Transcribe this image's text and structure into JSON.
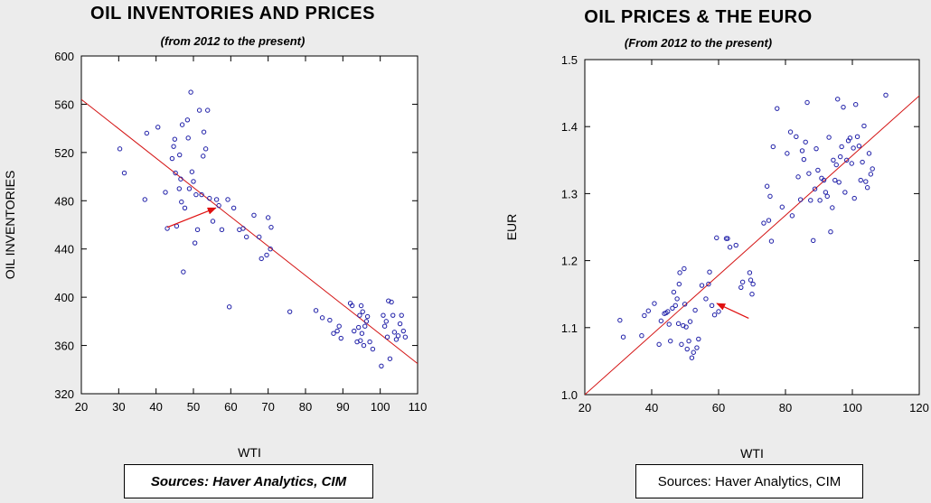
{
  "chart_data": [
    {
      "type": "scatter",
      "title": "OIL INVENTORIES AND PRICES",
      "subtitle": "(from 2012 to the present)",
      "xlabel": "WTI",
      "ylabel": "OIL INVENTORIES",
      "xlim": [
        20,
        110
      ],
      "ylim": [
        320,
        600
      ],
      "xticks": [
        20,
        30,
        40,
        50,
        60,
        70,
        80,
        90,
        100,
        110
      ],
      "yticks": [
        320,
        360,
        400,
        440,
        480,
        520,
        560,
        600
      ],
      "fit_line": [
        [
          20,
          564
        ],
        [
          110,
          345
        ]
      ],
      "arrow": {
        "from": [
          43,
          458
        ],
        "to": [
          56,
          474
        ]
      },
      "points": [
        [
          30.3,
          523
        ],
        [
          31.5,
          503
        ],
        [
          37,
          481
        ],
        [
          37.5,
          536
        ],
        [
          40.5,
          541
        ],
        [
          42.5,
          487
        ],
        [
          43,
          457
        ],
        [
          44.3,
          515
        ],
        [
          44.7,
          525
        ],
        [
          45,
          531
        ],
        [
          45.2,
          503
        ],
        [
          45.5,
          459
        ],
        [
          46.2,
          490
        ],
        [
          46.3,
          518
        ],
        [
          46.6,
          498
        ],
        [
          46.8,
          479
        ],
        [
          47,
          543
        ],
        [
          47.3,
          421
        ],
        [
          47.7,
          474
        ],
        [
          48.4,
          547
        ],
        [
          48.6,
          532
        ],
        [
          48.9,
          490
        ],
        [
          49.3,
          570
        ],
        [
          49.6,
          504
        ],
        [
          50,
          496
        ],
        [
          50.4,
          445
        ],
        [
          50.7,
          485
        ],
        [
          51.1,
          456
        ],
        [
          51.6,
          555
        ],
        [
          52.2,
          485
        ],
        [
          52.6,
          517
        ],
        [
          52.8,
          537
        ],
        [
          53.3,
          523
        ],
        [
          53.8,
          555
        ],
        [
          54.3,
          482
        ],
        [
          55.2,
          463
        ],
        [
          56.2,
          481
        ],
        [
          56.8,
          476
        ],
        [
          57.6,
          456
        ],
        [
          59.2,
          481
        ],
        [
          59.6,
          392
        ],
        [
          60.8,
          474
        ],
        [
          62.3,
          456
        ],
        [
          63.3,
          457
        ],
        [
          64.2,
          450
        ],
        [
          66.2,
          468
        ],
        [
          67.6,
          450
        ],
        [
          68.2,
          432
        ],
        [
          69.6,
          435
        ],
        [
          70,
          466
        ],
        [
          70.6,
          440
        ],
        [
          70.8,
          458
        ],
        [
          75.8,
          388
        ],
        [
          82.8,
          389
        ],
        [
          84.5,
          383
        ],
        [
          86.5,
          381
        ],
        [
          87.5,
          370
        ],
        [
          88.5,
          372
        ],
        [
          89,
          376
        ],
        [
          89.5,
          366
        ],
        [
          92,
          395
        ],
        [
          92.5,
          393
        ],
        [
          93,
          372
        ],
        [
          93.8,
          363
        ],
        [
          94.2,
          375
        ],
        [
          94.5,
          385
        ],
        [
          94.7,
          364
        ],
        [
          94.9,
          393
        ],
        [
          95.1,
          370
        ],
        [
          95.3,
          388
        ],
        [
          95.6,
          360
        ],
        [
          95.9,
          376
        ],
        [
          96.3,
          380
        ],
        [
          96.6,
          384
        ],
        [
          97.2,
          363
        ],
        [
          98,
          357
        ],
        [
          100.3,
          343
        ],
        [
          100.8,
          385
        ],
        [
          101.2,
          376
        ],
        [
          101.6,
          380
        ],
        [
          101.9,
          367
        ],
        [
          102.2,
          397
        ],
        [
          102.6,
          349
        ],
        [
          103,
          396
        ],
        [
          103.4,
          385
        ],
        [
          103.8,
          371
        ],
        [
          104.3,
          365
        ],
        [
          104.8,
          368
        ],
        [
          105.3,
          378
        ],
        [
          105.7,
          385
        ],
        [
          106.2,
          372
        ],
        [
          106.7,
          367
        ]
      ]
    },
    {
      "type": "scatter",
      "title": "OIL PRICES & THE EURO",
      "subtitle": "(From 2012 to the present)",
      "xlabel": "WTI",
      "ylabel": "EUR",
      "xlim": [
        20,
        120
      ],
      "ylim": [
        1.0,
        1.5
      ],
      "xticks": [
        20,
        40,
        60,
        80,
        100,
        120
      ],
      "yticks": [
        1.0,
        1.1,
        1.2,
        1.3,
        1.4,
        1.5
      ],
      "ytick_labels": [
        "1.0",
        "1.1",
        "1.2",
        "1.3",
        "1.4",
        "1.5"
      ],
      "fit_line": [
        [
          20,
          1.0
        ],
        [
          120,
          1.446
        ]
      ],
      "arrow": {
        "from": [
          69,
          1.114
        ],
        "to": [
          59.5,
          1.136
        ]
      },
      "points": [
        [
          30.5,
          1.111
        ],
        [
          31.5,
          1.086
        ],
        [
          37,
          1.088
        ],
        [
          37.8,
          1.118
        ],
        [
          39,
          1.125
        ],
        [
          40.8,
          1.136
        ],
        [
          42.2,
          1.075
        ],
        [
          42.8,
          1.11
        ],
        [
          43.8,
          1.121
        ],
        [
          44.3,
          1.122
        ],
        [
          44.8,
          1.124
        ],
        [
          45.2,
          1.105
        ],
        [
          45.6,
          1.08
        ],
        [
          46.2,
          1.129
        ],
        [
          46.6,
          1.153
        ],
        [
          47.1,
          1.133
        ],
        [
          47.6,
          1.143
        ],
        [
          48,
          1.106
        ],
        [
          48.2,
          1.165
        ],
        [
          48.4,
          1.182
        ],
        [
          48.9,
          1.075
        ],
        [
          49.4,
          1.103
        ],
        [
          49.7,
          1.188
        ],
        [
          49.9,
          1.135
        ],
        [
          50.3,
          1.101
        ],
        [
          50.6,
          1.068
        ],
        [
          51.1,
          1.08
        ],
        [
          51.5,
          1.109
        ],
        [
          52,
          1.055
        ],
        [
          52.5,
          1.063
        ],
        [
          53,
          1.126
        ],
        [
          53.5,
          1.07
        ],
        [
          54,
          1.083
        ],
        [
          55,
          1.163
        ],
        [
          56.2,
          1.143
        ],
        [
          57,
          1.165
        ],
        [
          57.3,
          1.183
        ],
        [
          58,
          1.133
        ],
        [
          58.8,
          1.119
        ],
        [
          59.4,
          1.234
        ],
        [
          60,
          1.124
        ],
        [
          62.3,
          1.233
        ],
        [
          62.7,
          1.233
        ],
        [
          63.4,
          1.22
        ],
        [
          65.2,
          1.223
        ],
        [
          66.7,
          1.16
        ],
        [
          67.2,
          1.168
        ],
        [
          69.3,
          1.182
        ],
        [
          69.6,
          1.171
        ],
        [
          70,
          1.15
        ],
        [
          70.3,
          1.165
        ],
        [
          73.5,
          1.256
        ],
        [
          74.5,
          1.311
        ],
        [
          75,
          1.26
        ],
        [
          75.4,
          1.296
        ],
        [
          75.8,
          1.229
        ],
        [
          76.3,
          1.37
        ],
        [
          77.5,
          1.427
        ],
        [
          79,
          1.28
        ],
        [
          80.5,
          1.36
        ],
        [
          81.5,
          1.392
        ],
        [
          82,
          1.267
        ],
        [
          83.2,
          1.385
        ],
        [
          83.8,
          1.325
        ],
        [
          84.5,
          1.291
        ],
        [
          85,
          1.364
        ],
        [
          85.5,
          1.351
        ],
        [
          86,
          1.377
        ],
        [
          86.5,
          1.436
        ],
        [
          87,
          1.33
        ],
        [
          87.5,
          1.29
        ],
        [
          88.3,
          1.23
        ],
        [
          88.8,
          1.307
        ],
        [
          89.2,
          1.367
        ],
        [
          89.7,
          1.335
        ],
        [
          90.3,
          1.29
        ],
        [
          90.8,
          1.323
        ],
        [
          91.5,
          1.32
        ],
        [
          92,
          1.302
        ],
        [
          92.5,
          1.296
        ],
        [
          93,
          1.384
        ],
        [
          93.5,
          1.243
        ],
        [
          94,
          1.279
        ],
        [
          94.3,
          1.35
        ],
        [
          94.8,
          1.32
        ],
        [
          95.2,
          1.343
        ],
        [
          95.6,
          1.441
        ],
        [
          96,
          1.317
        ],
        [
          96.4,
          1.355
        ],
        [
          96.8,
          1.37
        ],
        [
          97.3,
          1.429
        ],
        [
          97.8,
          1.302
        ],
        [
          98.3,
          1.35
        ],
        [
          98.8,
          1.379
        ],
        [
          99.3,
          1.383
        ],
        [
          99.8,
          1.345
        ],
        [
          100.3,
          1.368
        ],
        [
          100.6,
          1.293
        ],
        [
          101,
          1.433
        ],
        [
          101.5,
          1.385
        ],
        [
          102,
          1.371
        ],
        [
          102.5,
          1.32
        ],
        [
          103,
          1.347
        ],
        [
          103.5,
          1.401
        ],
        [
          104,
          1.318
        ],
        [
          104.5,
          1.309
        ],
        [
          105,
          1.36
        ],
        [
          105.5,
          1.329
        ],
        [
          106,
          1.337
        ],
        [
          110,
          1.447
        ]
      ]
    }
  ],
  "sources": {
    "left": "Sources:  Haver Analytics, CIM",
    "right": "Sources:  Haver Analytics, CIM"
  },
  "colors": {
    "background": "#ececec",
    "plot_area": "#ffffff",
    "points": "#1f1fa8",
    "fit_line": "#d41414",
    "arrow": "#e01010"
  }
}
